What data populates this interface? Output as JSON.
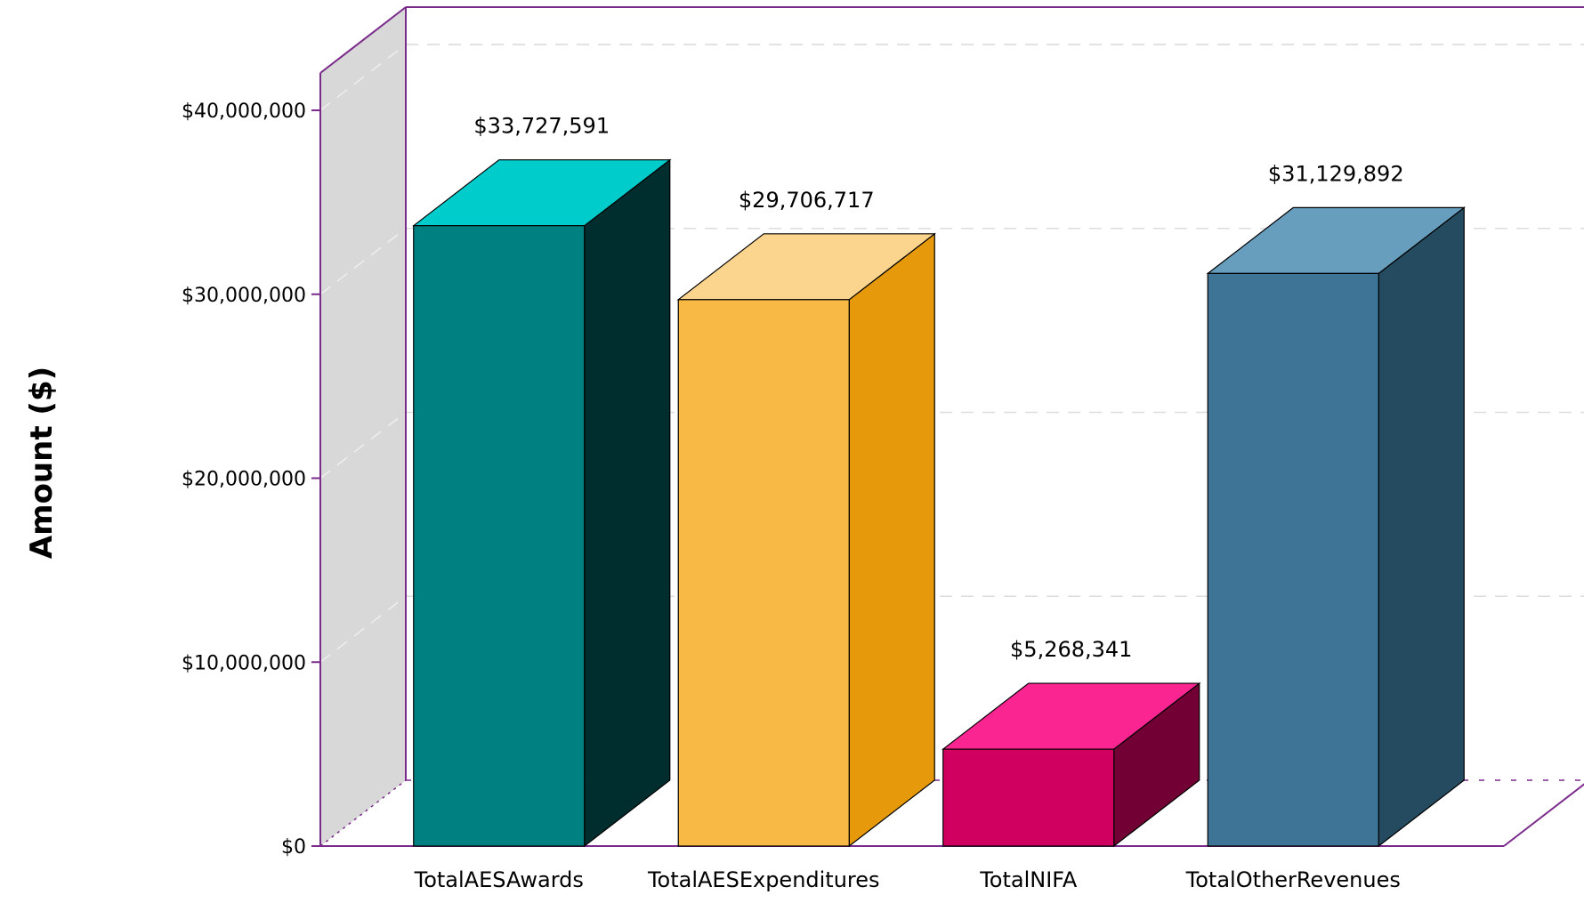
{
  "chart_data": {
    "type": "bar",
    "categories": [
      "TotalAESAwards",
      "TotalAESExpenditures",
      "TotalNIFA",
      "TotalOtherRevenues"
    ],
    "values": [
      33727591,
      29706717,
      5268341,
      31129892
    ],
    "value_labels": [
      "$33,727,591",
      "$29,706,717",
      "$5,268,341",
      "$31,129,892"
    ],
    "title": "",
    "xlabel": "",
    "ylabel": "Amount ($)",
    "ylim": [
      0,
      40000000
    ],
    "yticks": [
      0,
      10000000,
      20000000,
      30000000,
      40000000
    ],
    "ytick_labels": [
      "$0",
      "$10,000,000",
      "$20,000,000",
      "$30,000,000",
      "$40,000,000"
    ],
    "grid": true,
    "three_d": true,
    "colors": {
      "bars": [
        {
          "front": "#008080",
          "top": "#00cccc",
          "side": "#002e2e"
        },
        {
          "front": "#f8b945",
          "top": "#fbd48e",
          "side": "#e6990a"
        },
        {
          "front": "#d00060",
          "top": "#fa2590",
          "side": "#720035"
        },
        {
          "front": "#3e7597",
          "top": "#679ebe",
          "side": "#254b61"
        }
      ],
      "axis": "#7a2a8a",
      "back_wall_grid": "#dddddd",
      "side_wall": "#d8d8d8"
    }
  }
}
